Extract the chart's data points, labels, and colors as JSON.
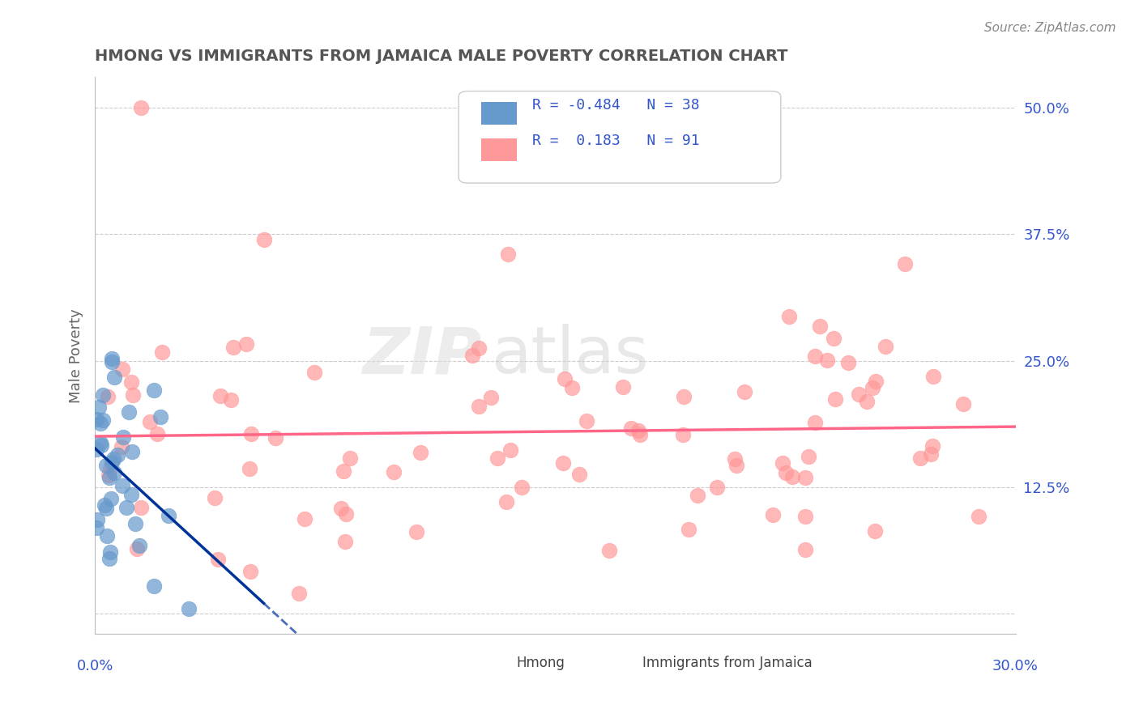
{
  "title": "HMONG VS IMMIGRANTS FROM JAMAICA MALE POVERTY CORRELATION CHART",
  "source": "Source: ZipAtlas.com",
  "ylabel": "Male Poverty",
  "right_yticklabels": [
    "12.5%",
    "25.0%",
    "37.5%",
    "50.0%"
  ],
  "right_yticks": [
    0.125,
    0.25,
    0.375,
    0.5
  ],
  "xlim": [
    0.0,
    0.3
  ],
  "ylim": [
    -0.02,
    0.53
  ],
  "hmong_R": -0.484,
  "hmong_N": 38,
  "jamaica_R": 0.183,
  "jamaica_N": 91,
  "legend_label1": "Hmong",
  "legend_label2": "Immigrants from Jamaica",
  "blue_color": "#6699CC",
  "pink_color": "#FF9999",
  "blue_line_color": "#003399",
  "pink_line_color": "#FF6688",
  "legend_text_color": "#3355CC",
  "title_color": "#555555",
  "grid_color": "#CCCCCC",
  "watermark_zip": "ZIP",
  "watermark_atlas": "atlas"
}
